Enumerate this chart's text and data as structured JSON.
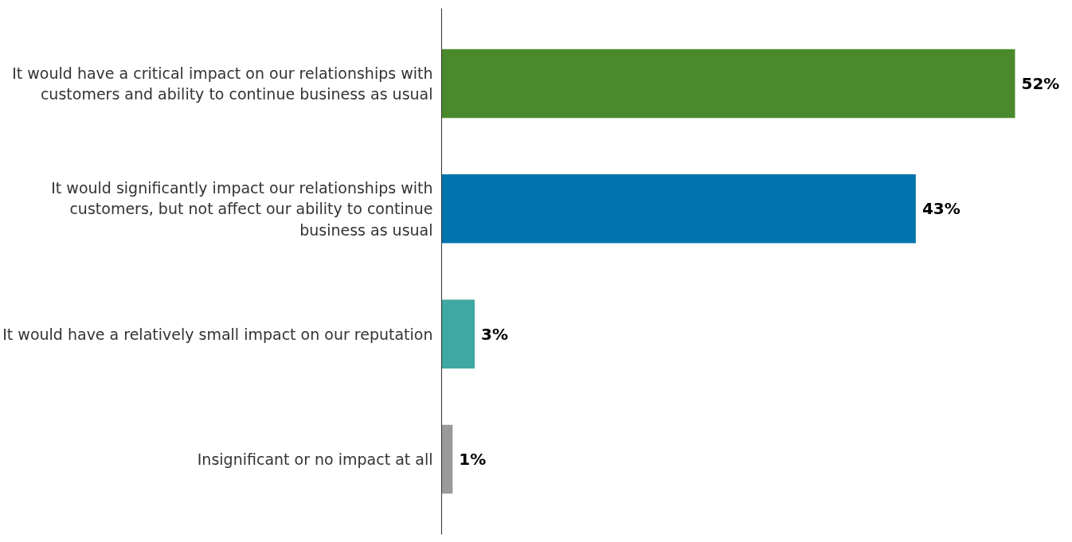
{
  "chart_data": {
    "type": "bar",
    "orientation": "horizontal",
    "categories": [
      "It would have a critical impact on our relationships with\ncustomers and ability to continue business as usual",
      "It would significantly impact our relationships with\ncustomers, but not affect our ability to continue\nbusiness as usual",
      "It would have a relatively small impact on our reputation",
      "Insignificant or no impact at all"
    ],
    "values": [
      52,
      43,
      3,
      1
    ],
    "colors": [
      "#4a8a2c",
      "#0073ac",
      "#3fa8a2",
      "#9a9a9a"
    ],
    "value_labels": [
      "52%",
      "43%",
      "3%",
      "1%"
    ]
  }
}
